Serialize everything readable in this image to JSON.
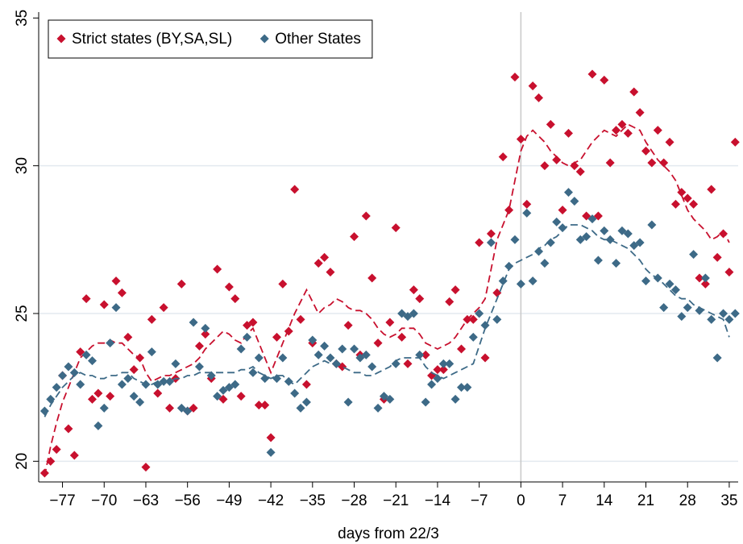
{
  "chart_data": {
    "type": "scatter",
    "x_label": "days from 22/3",
    "xlim": [
      -81,
      36.5
    ],
    "ylim": [
      19.3,
      35.2
    ],
    "xticks": [
      {
        "value": -77,
        "label": "−77"
      },
      {
        "value": -70,
        "label": "−70"
      },
      {
        "value": -63,
        "label": "−63"
      },
      {
        "value": -56,
        "label": "−56"
      },
      {
        "value": -49,
        "label": "−49"
      },
      {
        "value": -42,
        "label": "−42"
      },
      {
        "value": -35,
        "label": "−35"
      },
      {
        "value": -28,
        "label": "−28"
      },
      {
        "value": -21,
        "label": "−21"
      },
      {
        "value": -14,
        "label": "−14"
      },
      {
        "value": -7,
        "label": "−7"
      },
      0,
      7,
      14,
      21,
      28,
      35
    ],
    "yticks": [
      20,
      25,
      30,
      35
    ],
    "grid": true,
    "xline": 0,
    "legend_position": "top-left",
    "x": [
      -80,
      -79,
      -78,
      -77,
      -76,
      -75,
      -74,
      -73,
      -72,
      -71,
      -70,
      -69,
      -68,
      -67,
      -66,
      -65,
      -64,
      -63,
      -62,
      -61,
      -60,
      -59,
      -58,
      -57,
      -56,
      -55,
      -54,
      -53,
      -52,
      -51,
      -50,
      -49,
      -48,
      -47,
      -46,
      -45,
      -44,
      -43,
      -42,
      -41,
      -40,
      -39,
      -38,
      -37,
      -36,
      -35,
      -34,
      -33,
      -32,
      -31,
      -30,
      -29,
      -28,
      -27,
      -26,
      -25,
      -24,
      -23,
      -22,
      -21,
      -20,
      -19,
      -18,
      -17,
      -16,
      -15,
      -14,
      -13,
      -12,
      -11,
      -10,
      -9,
      -8,
      -7,
      -6,
      -5,
      -4,
      -3,
      -2,
      -1,
      0,
      1,
      2,
      3,
      4,
      5,
      6,
      7,
      8,
      9,
      10,
      11,
      12,
      13,
      14,
      15,
      16,
      17,
      18,
      19,
      20,
      21,
      22,
      23,
      24,
      25,
      26,
      27,
      28,
      29,
      30,
      31,
      32,
      33,
      34,
      35,
      36
    ],
    "series": [
      {
        "name": "Strict states (BY,SA,SL)",
        "color": "#c8102e",
        "values": [
          19.6,
          20.0,
          20.4,
          22.9,
          21.1,
          20.2,
          23.7,
          25.5,
          22.1,
          22.3,
          25.3,
          22.2,
          26.1,
          25.7,
          24.2,
          23.1,
          23.5,
          19.8,
          24.8,
          22.3,
          25.2,
          21.8,
          22.8,
          26.0,
          21.7,
          21.8,
          23.9,
          24.3,
          22.8,
          26.5,
          22.1,
          25.9,
          25.5,
          22.2,
          24.6,
          24.7,
          21.9,
          21.9,
          20.8,
          24.2,
          26.0,
          24.4,
          29.2,
          24.8,
          22.6,
          24.0,
          26.7,
          26.9,
          26.4,
          23.3,
          23.2,
          24.6,
          27.6,
          23.6,
          28.3,
          26.2,
          24.0,
          22.1,
          24.7,
          27.9,
          24.2,
          23.3,
          25.8,
          25.5,
          23.6,
          22.9,
          23.1,
          23.1,
          25.4,
          25.8,
          23.8,
          24.8,
          24.8,
          27.4,
          23.5,
          27.7,
          25.7,
          30.3,
          28.5,
          33.0,
          30.9,
          28.7,
          32.7,
          32.3,
          30.0,
          31.4,
          30.2,
          28.5,
          31.1,
          30.0,
          29.8,
          28.3,
          33.1,
          28.3,
          32.9,
          30.1,
          31.2,
          31.4,
          31.1,
          32.5,
          31.8,
          30.5,
          30.1,
          31.2,
          30.1,
          30.8,
          28.7,
          29.1,
          28.9,
          28.7,
          26.2,
          26.0,
          29.2,
          26.9,
          27.7,
          26.4,
          30.8
        ],
        "trend": [
          19.5,
          20.5,
          21.3,
          22.0,
          22.5,
          23.0,
          23.5,
          23.7,
          23.9,
          24.0,
          24.0,
          24.1,
          24.0,
          24.0,
          23.8,
          23.6,
          23.5,
          23.0,
          22.7,
          22.8,
          22.9,
          22.9,
          23.0,
          23.1,
          23.2,
          23.3,
          23.5,
          23.8,
          24.0,
          24.2,
          24.4,
          24.3,
          24.1,
          24.0,
          24.3,
          24.5,
          24.0,
          23.5,
          23.0,
          23.5,
          24.0,
          24.5,
          25.0,
          25.4,
          25.8,
          25.4,
          25.0,
          25.2,
          25.3,
          25.5,
          25.4,
          25.2,
          25.1,
          25.1,
          25.0,
          24.8,
          24.5,
          24.3,
          24.2,
          24.3,
          24.5,
          24.5,
          24.5,
          24.3,
          24.0,
          23.9,
          23.8,
          23.9,
          24.0,
          24.2,
          24.5,
          24.8,
          25.0,
          25.2,
          25.5,
          26.5,
          27.5,
          28.0,
          28.5,
          29.5,
          30.5,
          31.0,
          31.2,
          31.0,
          30.8,
          30.5,
          30.3,
          30.1,
          30.0,
          30.1,
          30.2,
          30.5,
          30.8,
          31.0,
          31.2,
          31.1,
          31.0,
          31.2,
          31.4,
          31.3,
          31.2,
          30.8,
          30.5,
          30.2,
          30.0,
          29.8,
          29.5,
          29.0,
          28.5,
          28.2,
          28.0,
          27.8,
          27.5,
          27.6,
          27.8,
          27.4,
          null
        ]
      },
      {
        "name": "Other States",
        "color": "#3d6a87",
        "values": [
          21.7,
          22.1,
          22.5,
          22.9,
          23.2,
          23.0,
          22.6,
          23.6,
          23.4,
          21.2,
          21.8,
          24.0,
          25.2,
          22.6,
          22.8,
          22.2,
          22.0,
          22.6,
          23.7,
          22.6,
          22.7,
          22.7,
          23.3,
          21.8,
          21.7,
          24.7,
          23.2,
          24.5,
          22.9,
          22.2,
          22.4,
          22.5,
          22.6,
          23.8,
          24.2,
          23.0,
          23.5,
          22.8,
          20.3,
          22.8,
          23.5,
          22.7,
          22.3,
          21.8,
          22.0,
          24.1,
          23.6,
          23.9,
          23.5,
          23.3,
          23.8,
          22.0,
          23.8,
          23.5,
          23.6,
          23.2,
          21.8,
          22.2,
          22.1,
          23.3,
          25.0,
          24.9,
          25.0,
          23.6,
          22.0,
          22.6,
          22.8,
          23.3,
          23.3,
          22.1,
          22.5,
          22.5,
          24.2,
          25.0,
          24.6,
          27.4,
          24.8,
          26.1,
          26.6,
          27.5,
          26.0,
          28.4,
          26.1,
          27.1,
          26.7,
          27.4,
          28.1,
          27.9,
          29.1,
          28.8,
          27.5,
          27.6,
          28.2,
          26.8,
          27.8,
          27.5,
          26.7,
          27.8,
          27.7,
          27.3,
          27.4,
          26.1,
          28.0,
          26.2,
          25.2,
          26.0,
          25.8,
          24.9,
          25.2,
          27.0,
          25.1,
          26.2,
          24.8,
          23.5,
          25.0,
          24.8,
          25.0
        ],
        "trend": [
          21.5,
          21.9,
          22.2,
          22.5,
          22.7,
          22.9,
          23.0,
          22.9,
          22.9,
          22.8,
          22.8,
          22.9,
          22.9,
          23.0,
          23.0,
          22.8,
          22.7,
          22.6,
          22.6,
          22.7,
          22.7,
          22.7,
          22.8,
          22.8,
          22.9,
          22.9,
          23.0,
          23.0,
          23.0,
          23.0,
          23.0,
          23.0,
          23.0,
          23.1,
          23.1,
          23.2,
          23.0,
          22.9,
          22.8,
          22.9,
          22.9,
          22.7,
          22.6,
          22.8,
          23.0,
          23.2,
          23.3,
          23.4,
          23.3,
          23.3,
          23.2,
          23.1,
          23.0,
          23.0,
          22.9,
          22.9,
          23.0,
          23.1,
          23.2,
          23.4,
          23.5,
          23.5,
          23.5,
          23.5,
          23.2,
          23.0,
          22.9,
          22.8,
          22.9,
          23.0,
          23.1,
          23.2,
          23.3,
          23.9,
          24.5,
          25.0,
          25.5,
          26.0,
          26.5,
          26.7,
          26.8,
          26.9,
          27.0,
          27.2,
          27.3,
          27.5,
          27.6,
          27.8,
          28.0,
          28.0,
          28.0,
          27.9,
          27.8,
          27.6,
          27.5,
          27.5,
          27.4,
          27.3,
          27.2,
          27.0,
          26.8,
          26.5,
          26.3,
          26.2,
          26.0,
          25.8,
          25.6,
          25.5,
          25.5,
          25.3,
          25.2,
          25.1,
          25.0,
          24.9,
          24.8,
          24.2,
          null
        ]
      }
    ]
  }
}
